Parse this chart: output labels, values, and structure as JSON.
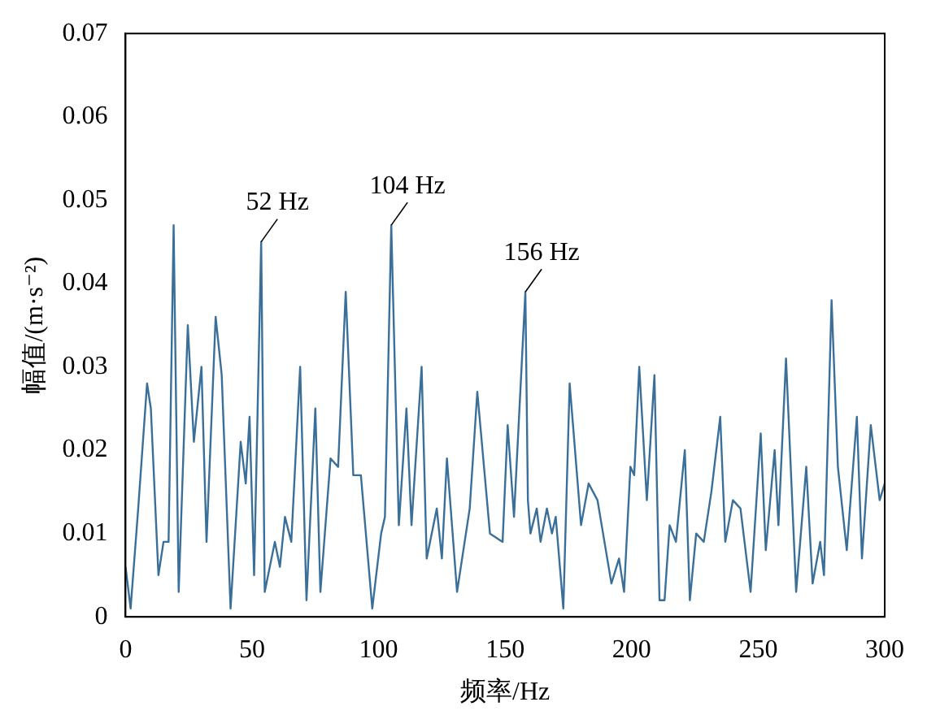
{
  "chart_data": {
    "type": "line",
    "xlabel": "频率/Hz",
    "ylabel": "幅值/(m·s⁻²)",
    "xlim": [
      0,
      300
    ],
    "xticks": [
      0,
      50,
      100,
      150,
      200,
      250,
      300
    ],
    "ylim": [
      0,
      0.07
    ],
    "yticks": [
      0,
      0.01,
      0.02,
      0.03,
      0.04,
      0.05,
      0.06,
      0.07
    ],
    "grid": false,
    "legend": false,
    "marker": "none",
    "line_style": "solid",
    "series": [
      {
        "color": "#3a6f9a",
        "x": [
          0,
          2,
          5,
          8.5,
          10,
          13,
          15,
          17,
          19,
          21,
          24.6,
          27,
          30,
          32,
          35.6,
          38,
          41.5,
          45.5,
          47.5,
          49,
          50.8,
          53.6,
          55,
          59,
          61,
          63,
          65.5,
          69,
          71.5,
          75,
          77,
          81,
          84,
          87,
          90,
          93,
          97.5,
          101,
          102.5,
          105,
          108,
          111,
          113,
          117,
          119,
          123,
          125,
          127,
          131,
          136,
          139,
          144,
          149,
          151,
          153.5,
          158,
          159,
          160,
          162.5,
          164,
          166.5,
          168.5,
          170,
          173,
          175.5,
          180,
          183,
          186.5,
          192,
          195,
          197,
          199.5,
          201,
          203,
          206,
          209,
          211,
          213,
          215,
          217.5,
          221,
          223,
          225.5,
          228.5,
          231.5,
          235,
          237,
          240,
          243,
          247,
          251,
          253,
          256.5,
          258,
          261,
          265,
          269,
          271.5,
          274.5,
          276,
          279,
          281.5,
          285,
          289,
          291,
          294.5,
          298,
          300
        ],
        "values": [
          0.006,
          0.001,
          0.013,
          0.028,
          0.025,
          0.005,
          0.009,
          0.009,
          0.047,
          0.003,
          0.035,
          0.021,
          0.03,
          0.009,
          0.036,
          0.029,
          0.001,
          0.021,
          0.016,
          0.024,
          0.005,
          0.045,
          0.003,
          0.009,
          0.006,
          0.012,
          0.009,
          0.03,
          0.002,
          0.025,
          0.003,
          0.019,
          0.018,
          0.039,
          0.017,
          0.017,
          0.001,
          0.01,
          0.012,
          0.047,
          0.011,
          0.025,
          0.011,
          0.03,
          0.007,
          0.013,
          0.007,
          0.019,
          0.003,
          0.013,
          0.027,
          0.01,
          0.009,
          0.023,
          0.012,
          0.039,
          0.014,
          0.01,
          0.013,
          0.009,
          0.013,
          0.01,
          0.012,
          0.001,
          0.028,
          0.011,
          0.016,
          0.014,
          0.004,
          0.007,
          0.003,
          0.018,
          0.017,
          0.03,
          0.014,
          0.029,
          0.002,
          0.002,
          0.011,
          0.009,
          0.02,
          0.002,
          0.01,
          0.009,
          0.015,
          0.024,
          0.009,
          0.014,
          0.013,
          0.003,
          0.022,
          0.008,
          0.02,
          0.011,
          0.031,
          0.003,
          0.018,
          0.004,
          0.009,
          0.005,
          0.038,
          0.018,
          0.008,
          0.024,
          0.007,
          0.023,
          0.014,
          0.016
        ]
      }
    ],
    "annotations": [
      {
        "text": "52 Hz",
        "x": 53.6,
        "y": 0.045
      },
      {
        "text": "104 Hz",
        "x": 105,
        "y": 0.047
      },
      {
        "text": "156 Hz",
        "x": 158,
        "y": 0.039
      }
    ]
  }
}
